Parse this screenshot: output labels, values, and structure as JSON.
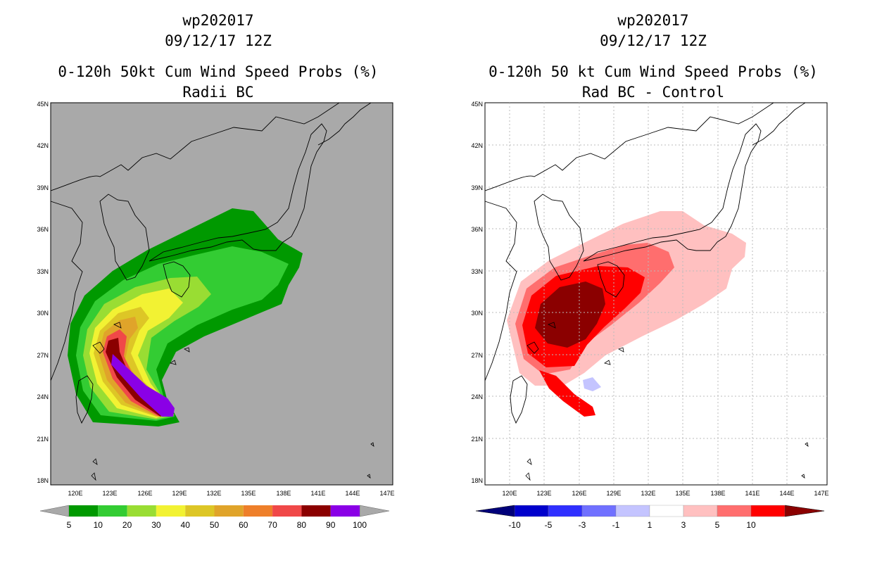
{
  "left": {
    "title_line1": "wp202017",
    "title_line2": "09/12/17 12Z",
    "title_line3": "0-120h 50kt Cum Wind Speed Probs (%)",
    "title_line4": "Radii BC",
    "colorbar": {
      "labels": [
        "5",
        "10",
        "20",
        "30",
        "40",
        "50",
        "60",
        "70",
        "80",
        "90",
        "100"
      ],
      "colors": [
        "#009900",
        "#33cc33",
        "#99dd33",
        "#f2f233",
        "#ddc626",
        "#e0a42a",
        "#ee7f2a",
        "#f04848",
        "#8b0000",
        "#8a00e6"
      ]
    }
  },
  "right": {
    "title_line1": "wp202017",
    "title_line2": "09/12/17 12Z",
    "title_line3": "0-120h 50 kt Cum Wind Speed Probs (%)",
    "title_line4": "Rad BC - Control",
    "colorbar": {
      "labels": [
        "-10",
        "-5",
        "-3",
        "-1",
        "1",
        "3",
        "5",
        "10"
      ],
      "colors": [
        "#0000cc",
        "#2f2fff",
        "#7070ff",
        "#c4c4ff",
        "#ffffff",
        "#ffc0c0",
        "#ff6e6e",
        "#ff0000"
      ]
    }
  },
  "map": {
    "lat_labels": [
      "45N",
      "42N",
      "39N",
      "36N",
      "33N",
      "30N",
      "27N",
      "24N",
      "21N",
      "18N"
    ],
    "lon_labels": [
      "120E",
      "123E",
      "126E",
      "129E",
      "132E",
      "135E",
      "138E",
      "141E",
      "144E",
      "147E"
    ],
    "colors": {
      "land_bg_left": "#a9a9a9",
      "bg_right": "#ffffff",
      "coast": "#000000",
      "grid": "#bbbbbb"
    }
  }
}
